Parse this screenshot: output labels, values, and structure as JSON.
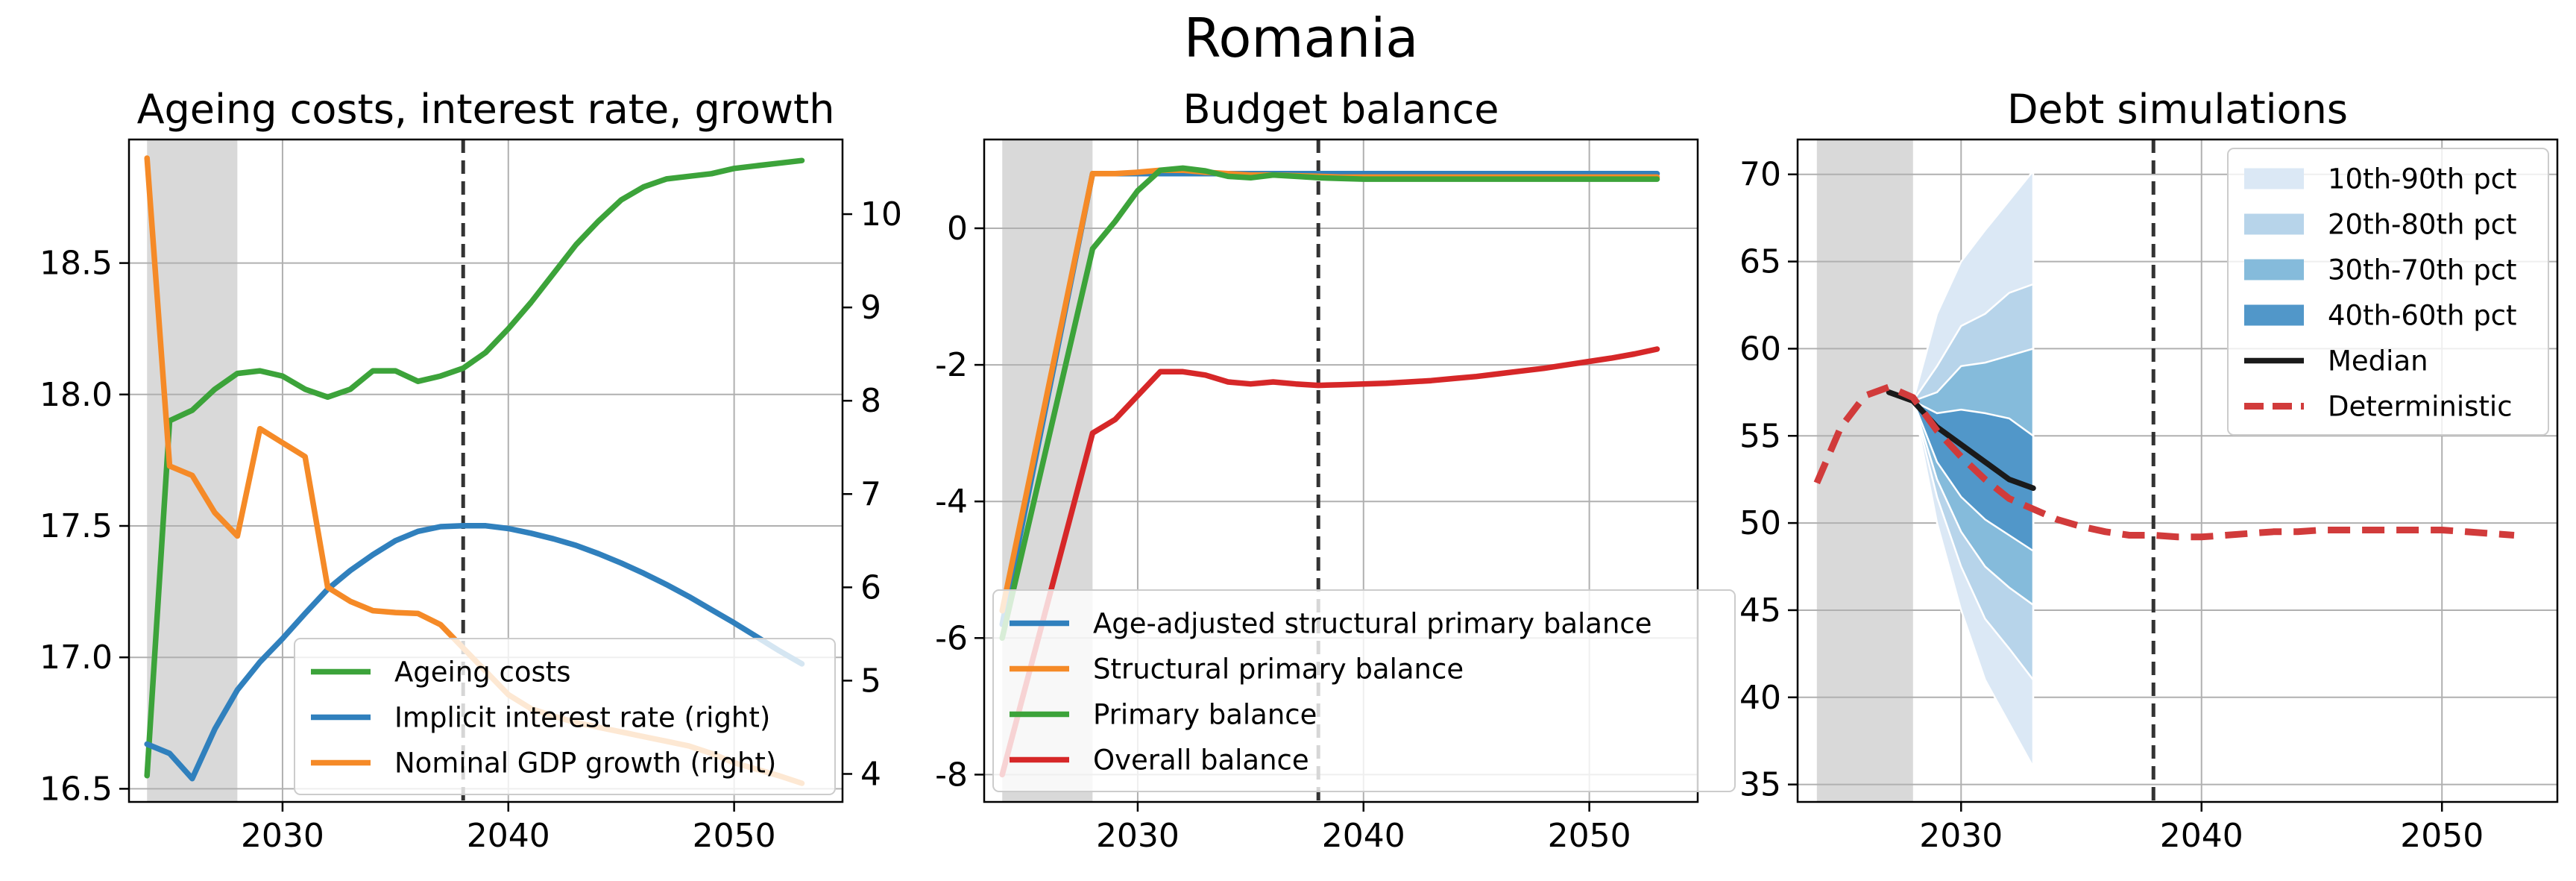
{
  "figure_title": "Romania",
  "chart_data": [
    {
      "type": "line",
      "title": "Ageing costs, interest rate, growth",
      "xlabel": "",
      "ylabel": "",
      "xlim": [
        2023.2,
        2054.8
      ],
      "ylim": [
        16.45,
        18.97
      ],
      "ylim_right": [
        3.7,
        10.8
      ],
      "xticks": [
        "2030",
        "2040",
        "2050"
      ],
      "yticks_left": [
        "16.5",
        "17.0",
        "17.5",
        "18.0",
        "18.5"
      ],
      "yticks_right": [
        "4",
        "5",
        "6",
        "7",
        "8",
        "9",
        "10"
      ],
      "grid": true,
      "shaded_span": [
        2024,
        2028
      ],
      "vline": 2038,
      "legend_position": "lower-right",
      "series": [
        {
          "name": "Ageing costs",
          "axis": "left",
          "color": "#3ca33a",
          "x": [
            2024,
            2025,
            2026,
            2027,
            2028,
            2029,
            2030,
            2031,
            2032,
            2033,
            2034,
            2035,
            2036,
            2037,
            2038,
            2039,
            2040,
            2041,
            2042,
            2043,
            2044,
            2045,
            2046,
            2047,
            2048,
            2049,
            2050,
            2051,
            2052,
            2053
          ],
          "y": [
            16.55,
            17.9,
            17.94,
            18.02,
            18.08,
            18.09,
            18.07,
            18.02,
            17.99,
            18.02,
            18.09,
            18.09,
            18.05,
            18.07,
            18.1,
            18.16,
            18.25,
            18.35,
            18.46,
            18.57,
            18.66,
            18.74,
            18.79,
            18.82,
            18.83,
            18.84,
            18.86,
            18.87,
            18.88,
            18.89
          ]
        },
        {
          "name": "Implicit interest rate (right)",
          "axis": "right",
          "color": "#3080bd",
          "x": [
            2024,
            2025,
            2026,
            2027,
            2028,
            2029,
            2030,
            2031,
            2032,
            2033,
            2034,
            2035,
            2036,
            2037,
            2038,
            2039,
            2040,
            2041,
            2042,
            2043,
            2044,
            2045,
            2046,
            2047,
            2048,
            2049,
            2050,
            2051,
            2052,
            2053
          ],
          "y": [
            4.32,
            4.22,
            3.95,
            4.48,
            4.9,
            5.2,
            5.45,
            5.72,
            5.98,
            6.18,
            6.35,
            6.5,
            6.6,
            6.65,
            6.66,
            6.66,
            6.63,
            6.58,
            6.52,
            6.45,
            6.36,
            6.26,
            6.15,
            6.03,
            5.9,
            5.76,
            5.62,
            5.47,
            5.32,
            5.18
          ]
        },
        {
          "name": "Nominal GDP growth (right)",
          "axis": "right",
          "color": "#f58a27",
          "x": [
            2024,
            2025,
            2026,
            2027,
            2028,
            2029,
            2030,
            2031,
            2032,
            2033,
            2034,
            2035,
            2036,
            2037,
            2038,
            2039,
            2040,
            2041,
            2042,
            2043,
            2044,
            2045,
            2046,
            2047,
            2048,
            2049,
            2050,
            2051,
            2052,
            2053
          ],
          "y": [
            10.6,
            7.3,
            7.2,
            6.8,
            6.55,
            7.7,
            7.55,
            7.4,
            6.0,
            5.85,
            5.75,
            5.73,
            5.72,
            5.6,
            5.35,
            5.1,
            4.85,
            4.7,
            4.62,
            4.55,
            4.5,
            4.45,
            4.4,
            4.35,
            4.3,
            4.22,
            4.12,
            4.05,
            3.98,
            3.9
          ]
        }
      ]
    },
    {
      "type": "line",
      "title": "Budget balance",
      "xlabel": "",
      "ylabel": "",
      "xlim": [
        2023.2,
        2054.8
      ],
      "ylim": [
        -8.4,
        1.3
      ],
      "xticks": [
        "2030",
        "2040",
        "2050"
      ],
      "yticks": [
        "-8",
        "-6",
        "-4",
        "-2",
        "0"
      ],
      "grid": true,
      "shaded_span": [
        2024,
        2028
      ],
      "vline": 2038,
      "legend_position": "lower-left",
      "series": [
        {
          "name": "Age-adjusted structural primary balance",
          "color": "#3080bd",
          "x": [
            2024,
            2028,
            2029,
            2030,
            2031,
            2032,
            2033,
            2034,
            2035,
            2036,
            2037,
            2038,
            2039,
            2040,
            2041,
            2042,
            2043,
            2044,
            2045,
            2046,
            2047,
            2048,
            2049,
            2050,
            2051,
            2052,
            2053
          ],
          "y": [
            -5.8,
            0.8,
            0.8,
            0.8,
            0.8,
            0.8,
            0.8,
            0.8,
            0.8,
            0.8,
            0.8,
            0.8,
            0.8,
            0.8,
            0.8,
            0.8,
            0.8,
            0.8,
            0.8,
            0.8,
            0.8,
            0.8,
            0.8,
            0.8,
            0.8,
            0.8,
            0.8
          ]
        },
        {
          "name": "Structural primary balance",
          "color": "#f58a27",
          "x": [
            2024,
            2028,
            2029,
            2030,
            2031,
            2032,
            2033,
            2034,
            2035,
            2036,
            2037,
            2038,
            2039,
            2040,
            2041,
            2042,
            2043,
            2044,
            2045,
            2046,
            2047,
            2048,
            2049,
            2050,
            2051,
            2052,
            2053
          ],
          "y": [
            -5.6,
            0.8,
            0.8,
            0.82,
            0.85,
            0.85,
            0.82,
            0.8,
            0.78,
            0.78,
            0.77,
            0.76,
            0.75,
            0.75,
            0.75,
            0.75,
            0.75,
            0.75,
            0.75,
            0.75,
            0.75,
            0.75,
            0.75,
            0.75,
            0.75,
            0.75,
            0.75
          ]
        },
        {
          "name": "Primary balance",
          "color": "#3ca33a",
          "x": [
            2024,
            2028,
            2029,
            2030,
            2031,
            2032,
            2033,
            2034,
            2035,
            2036,
            2037,
            2038,
            2039,
            2040,
            2041,
            2042,
            2043,
            2044,
            2045,
            2046,
            2047,
            2048,
            2049,
            2050,
            2051,
            2052,
            2053
          ],
          "y": [
            -6.0,
            -0.3,
            0.1,
            0.55,
            0.85,
            0.88,
            0.84,
            0.76,
            0.74,
            0.78,
            0.76,
            0.74,
            0.73,
            0.72,
            0.72,
            0.72,
            0.72,
            0.72,
            0.72,
            0.72,
            0.72,
            0.72,
            0.72,
            0.72,
            0.72,
            0.72,
            0.72
          ]
        },
        {
          "name": "Overall balance",
          "color": "#d62728",
          "x": [
            2024,
            2028,
            2029,
            2030,
            2031,
            2032,
            2033,
            2034,
            2035,
            2036,
            2037,
            2038,
            2039,
            2040,
            2041,
            2042,
            2043,
            2044,
            2045,
            2046,
            2047,
            2048,
            2049,
            2050,
            2051,
            2052,
            2053
          ],
          "y": [
            -8.0,
            -3.0,
            -2.8,
            -2.45,
            -2.1,
            -2.1,
            -2.15,
            -2.25,
            -2.28,
            -2.25,
            -2.28,
            -2.3,
            -2.29,
            -2.28,
            -2.27,
            -2.25,
            -2.23,
            -2.2,
            -2.17,
            -2.13,
            -2.09,
            -2.05,
            -2.0,
            -1.95,
            -1.9,
            -1.84,
            -1.77
          ]
        }
      ]
    },
    {
      "type": "area",
      "title": "Debt simulations",
      "xlabel": "",
      "ylabel": "",
      "xlim": [
        2023.2,
        2054.8
      ],
      "ylim": [
        34,
        72
      ],
      "xticks": [
        "2030",
        "2040",
        "2050"
      ],
      "yticks": [
        "35",
        "40",
        "45",
        "50",
        "55",
        "60",
        "65",
        "70"
      ],
      "grid": true,
      "shaded_span": [
        2024,
        2028
      ],
      "vline": 2038,
      "legend_position": "top-right",
      "fan_x": [
        2028,
        2029,
        2030,
        2031,
        2032,
        2033
      ],
      "bands": [
        {
          "name": "10th-90th pct",
          "color": "#dbe8f5",
          "lower": [
            57.0,
            50.0,
            45.0,
            41.0,
            38.5,
            36.0
          ],
          "upper": [
            57.0,
            62.0,
            65.0,
            66.8,
            68.5,
            70.2
          ]
        },
        {
          "name": "20th-80th pct",
          "color": "#b7d4ea",
          "lower": [
            57.0,
            51.5,
            47.5,
            44.5,
            42.8,
            41.0
          ],
          "upper": [
            57.0,
            59.0,
            61.3,
            62.0,
            63.2,
            63.7
          ]
        },
        {
          "name": "30th-70th pct",
          "color": "#85bbdb",
          "lower": [
            57.0,
            52.5,
            49.5,
            47.5,
            46.3,
            45.3
          ],
          "upper": [
            57.0,
            57.5,
            59.0,
            59.2,
            59.6,
            60.0
          ]
        },
        {
          "name": "40th-60th pct",
          "color": "#5197c9",
          "lower": [
            57.0,
            53.5,
            51.5,
            50.2,
            49.3,
            48.4
          ],
          "upper": [
            57.0,
            56.3,
            56.5,
            56.3,
            56.0,
            55.0
          ]
        }
      ],
      "series": [
        {
          "name": "Median",
          "color": "#1a1a1a",
          "style": "solid",
          "x": [
            2027,
            2028,
            2029,
            2030,
            2031,
            2032,
            2033
          ],
          "y": [
            57.5,
            57.0,
            55.5,
            54.5,
            53.5,
            52.5,
            52.0
          ]
        },
        {
          "name": "Deterministic",
          "color": "#d13b3b",
          "style": "dashed",
          "x": [
            2024,
            2025,
            2026,
            2027,
            2028,
            2029,
            2030,
            2031,
            2032,
            2033,
            2034,
            2035,
            2036,
            2037,
            2038,
            2039,
            2040,
            2041,
            2042,
            2043,
            2044,
            2045,
            2046,
            2047,
            2048,
            2049,
            2050,
            2051,
            2052,
            2053
          ],
          "y": [
            52.3,
            55.5,
            57.3,
            57.8,
            57.2,
            55.3,
            53.8,
            52.5,
            51.4,
            50.8,
            50.2,
            49.8,
            49.5,
            49.3,
            49.3,
            49.2,
            49.2,
            49.3,
            49.4,
            49.5,
            49.5,
            49.6,
            49.6,
            49.6,
            49.6,
            49.6,
            49.6,
            49.5,
            49.4,
            49.3
          ]
        }
      ]
    }
  ]
}
